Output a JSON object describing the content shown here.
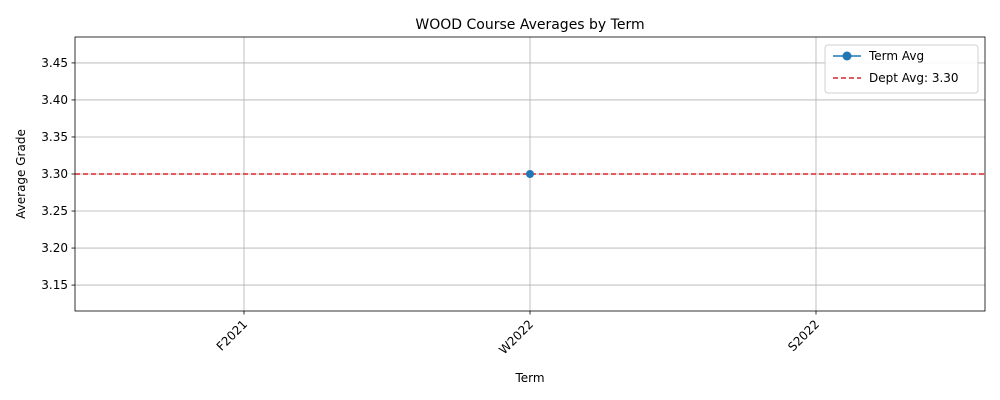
{
  "chart_data": {
    "type": "line",
    "title": "WOOD Course Averages by Term",
    "xlabel": "Term",
    "ylabel": "Average Grade",
    "categories": [
      "F2021",
      "W2022",
      "S2022"
    ],
    "series": [
      {
        "name": "Term Avg",
        "values": [
          null,
          3.3,
          null
        ],
        "color": "#1f77b4"
      }
    ],
    "reference_line": {
      "name": "Dept Avg: 3.30",
      "value": 3.3,
      "color": "#d62728",
      "style": "dashed"
    },
    "ylim": [
      3.115,
      3.485
    ],
    "yticks": [
      3.15,
      3.2,
      3.25,
      3.3,
      3.35,
      3.4,
      3.45
    ],
    "ytick_labels": [
      "3.15",
      "3.20",
      "3.25",
      "3.30",
      "3.35",
      "3.40",
      "3.45"
    ],
    "grid": true,
    "legend_position": "top-right"
  }
}
